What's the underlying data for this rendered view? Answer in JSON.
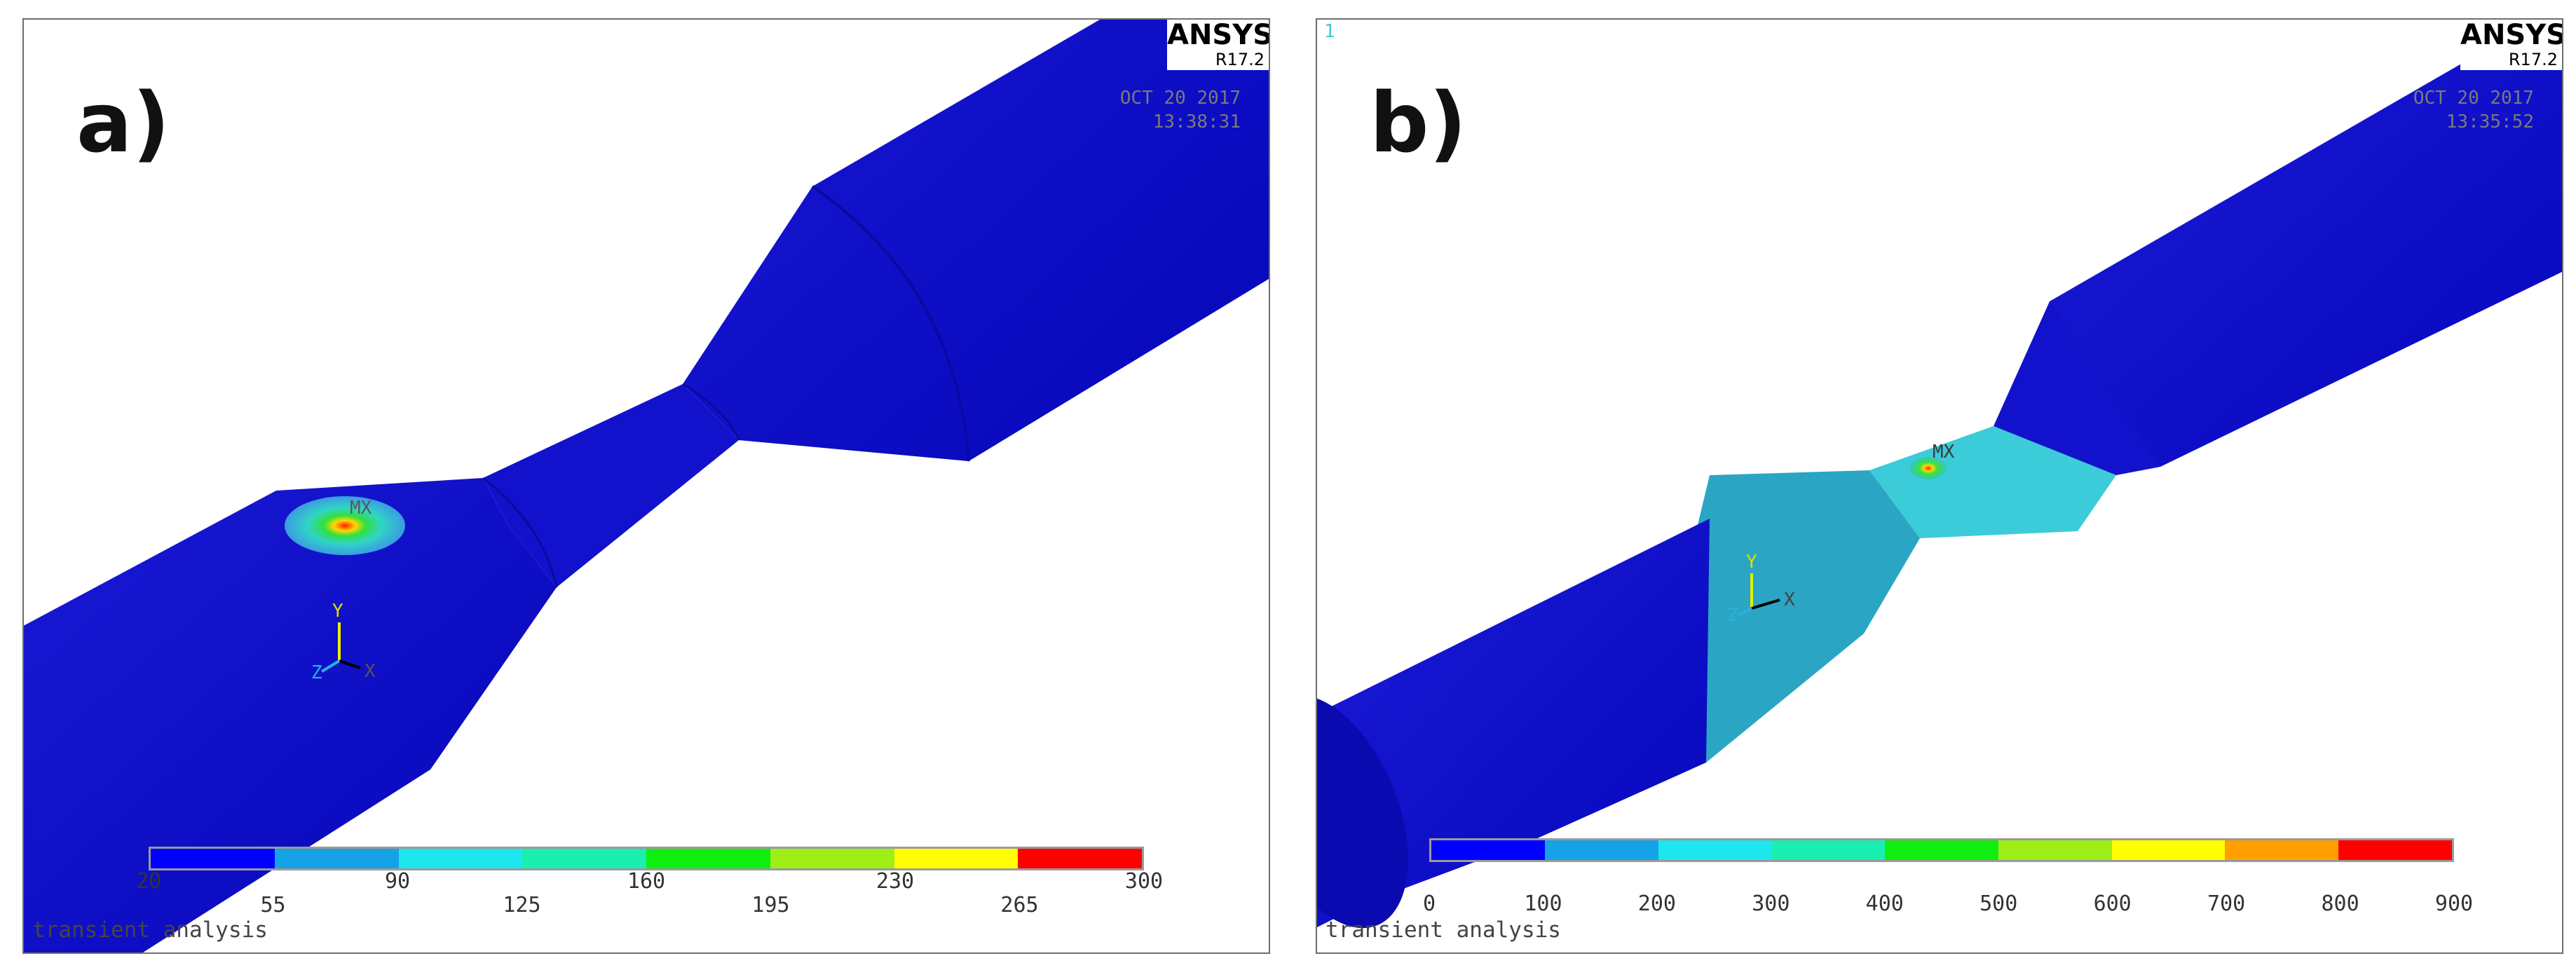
{
  "colors": {
    "bar_a": [
      "#0000ff",
      "#16a2e6",
      "#1ce6ee",
      "#1aeeb0",
      "#10ee10",
      "#9eee18",
      "#ffff00",
      "#ff0000"
    ],
    "bar_b": [
      "#0000ff",
      "#16a2e6",
      "#1ce6ee",
      "#1aeeb0",
      "#10ee10",
      "#9eee18",
      "#ffff00",
      "#ffa000",
      "#ff0000"
    ]
  },
  "panel_a": {
    "letter": "a)",
    "brand": "ANSYS",
    "version": "R17.2",
    "date": "OCT 20 2017",
    "time": "13:38:31",
    "max_label": "MX",
    "axes": {
      "y": "Y",
      "z": "Z",
      "x": "X"
    },
    "legend_ticks": [
      "20",
      "55",
      "90",
      "125",
      "160",
      "195",
      "230",
      "265",
      "300"
    ],
    "caption": "transient analysis"
  },
  "panel_b": {
    "window_number": "1",
    "letter": "b)",
    "brand": "ANSYS",
    "version": "R17.2",
    "date": "OCT 20 2017",
    "time": "13:35:52",
    "max_label": "MX",
    "axes": {
      "y": "Y",
      "z": "Z",
      "x": "X"
    },
    "legend_ticks": [
      "0",
      "100",
      "200",
      "300",
      "400",
      "500",
      "600",
      "700",
      "800",
      "900"
    ],
    "caption": "transient analysis"
  }
}
